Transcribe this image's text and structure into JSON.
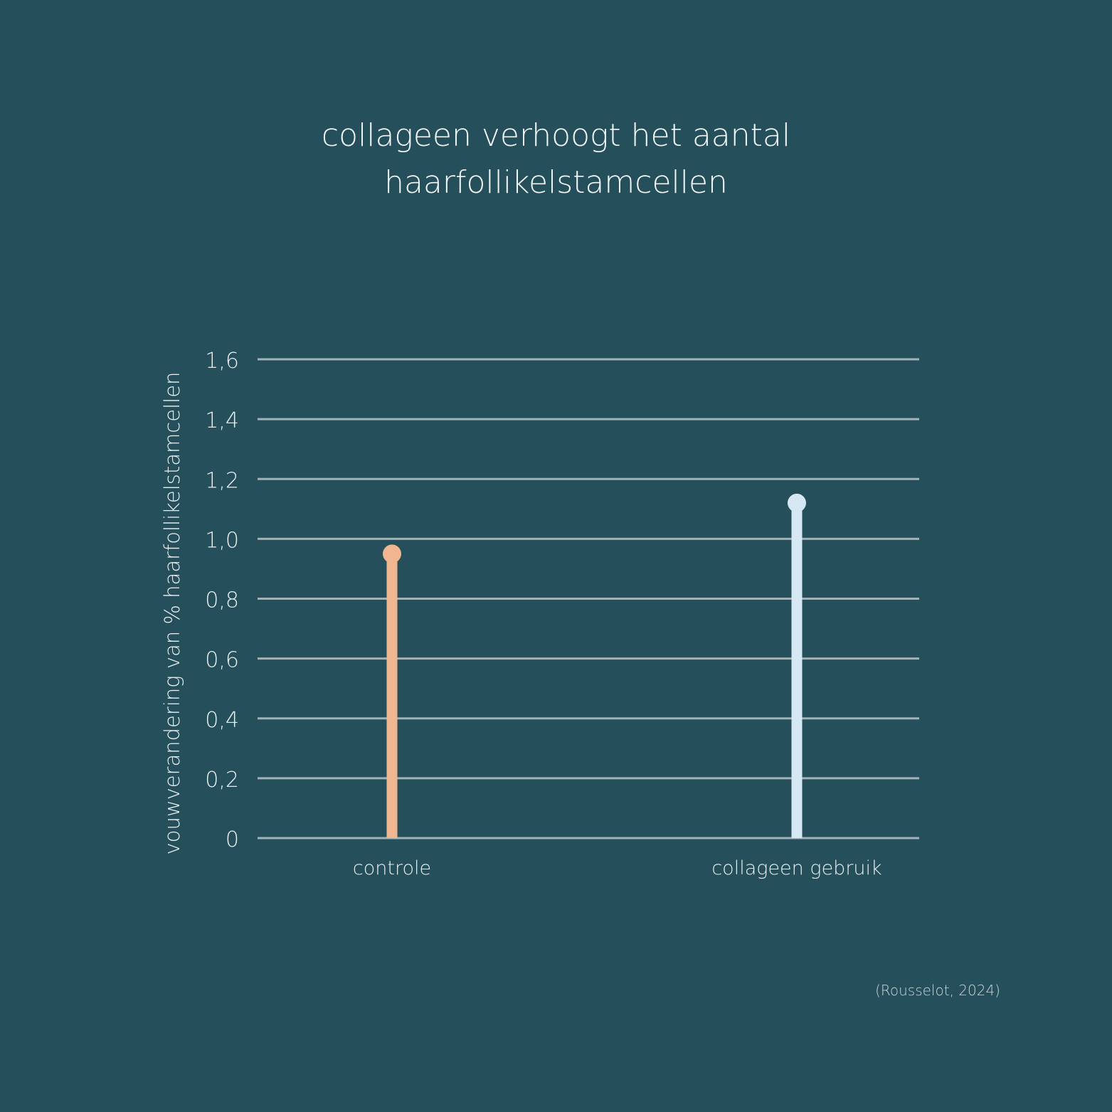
{
  "title_lines": [
    "collageen verhoogt het aantal",
    "haarfollikelstamcellen"
  ],
  "source": "(Rousselot, 2024)",
  "chart_data": {
    "type": "lollipop",
    "categories": [
      "controle",
      "collageen gebruik"
    ],
    "values": [
      0.95,
      1.12
    ],
    "colors": [
      "#f0b690",
      "#d6e8f4"
    ],
    "ylabel": "vouwverandering  van % haarfollikelstamcellen",
    "ylim": [
      0,
      1.6
    ],
    "yticks": [
      0,
      0.2,
      0.4,
      0.6,
      0.8,
      1.0,
      1.2,
      1.4,
      1.6
    ],
    "ytick_labels": [
      "0",
      "0,2",
      "0,4",
      "0,6",
      "0,8",
      "1,0",
      "1,2",
      "1,4",
      "1,6"
    ],
    "grid": true,
    "gridline_color": "#9fb3b9"
  }
}
